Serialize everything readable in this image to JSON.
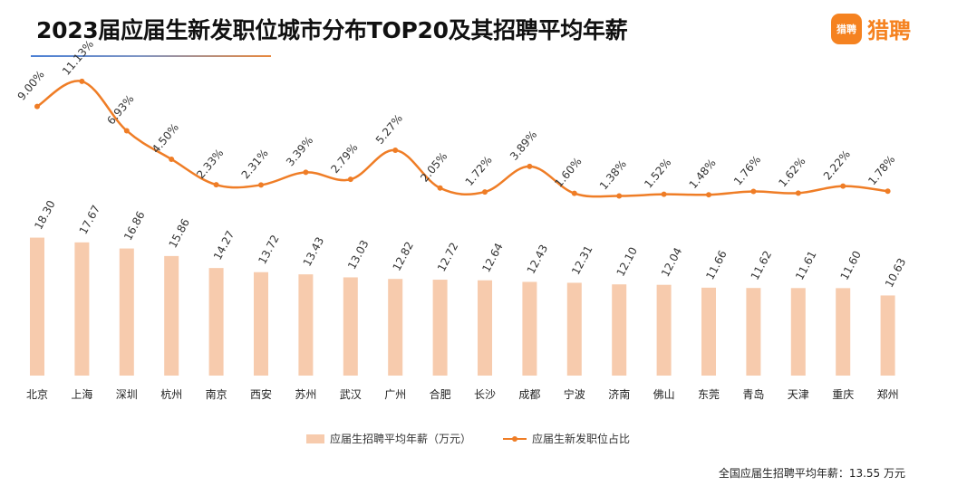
{
  "header": {
    "title": "2023届应届生新发职位城市分布TOP20及其招聘平均年薪",
    "logo_text": "猎聘",
    "logo_badge": "猎聘"
  },
  "footnote": "全国应届生招聘平均年薪：13.55 万元",
  "colors": {
    "bar": "#f7cbad",
    "line": "#ef7d26",
    "accent_title_gradient": [
      "#4a7fd4",
      "#e8873c"
    ]
  },
  "chart_data": {
    "type": "bar+line",
    "categories": [
      "北京",
      "上海",
      "深圳",
      "杭州",
      "南京",
      "西安",
      "苏州",
      "武汉",
      "广州",
      "合肥",
      "长沙",
      "成都",
      "宁波",
      "济南",
      "佛山",
      "东莞",
      "青岛",
      "天津",
      "重庆",
      "郑州"
    ],
    "series": [
      {
        "name": "应届生招聘平均年薪（万元）",
        "type": "bar",
        "values": [
          18.3,
          17.67,
          16.86,
          15.86,
          14.27,
          13.72,
          13.43,
          13.03,
          12.82,
          12.72,
          12.64,
          12.43,
          12.31,
          12.1,
          12.04,
          11.66,
          11.62,
          11.61,
          11.6,
          10.63
        ],
        "labels": [
          "18.30",
          "17.67",
          "16.86",
          "15.86",
          "14.27",
          "13.72",
          "13.43",
          "13.03",
          "12.82",
          "12.72",
          "12.64",
          "12.43",
          "12.31",
          "12.10",
          "12.04",
          "11.66",
          "11.62",
          "11.61",
          "11.60",
          "10.63"
        ]
      },
      {
        "name": "应届生新发职位占比",
        "type": "line",
        "values": [
          9.0,
          11.13,
          6.93,
          4.5,
          2.33,
          2.31,
          3.39,
          2.79,
          5.27,
          2.05,
          1.72,
          3.89,
          1.6,
          1.38,
          1.52,
          1.48,
          1.76,
          1.62,
          2.22,
          1.78
        ],
        "labels": [
          "9.00%",
          "11.13%",
          "6.93%",
          "4.50%",
          "2.33%",
          "2.31%",
          "3.39%",
          "2.79%",
          "5.27%",
          "2.05%",
          "1.72%",
          "3.89%",
          "1.60%",
          "1.38%",
          "1.52%",
          "1.48%",
          "1.76%",
          "1.62%",
          "2.22%",
          "1.78%"
        ]
      }
    ],
    "legend_position": "bottom",
    "grid": false
  }
}
